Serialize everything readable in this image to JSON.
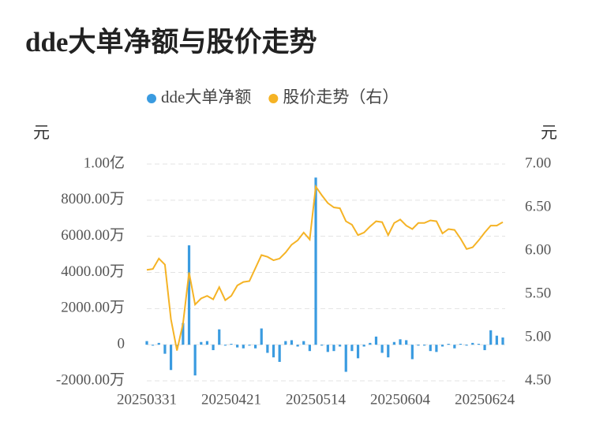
{
  "chart_data": {
    "type": "bar-line",
    "title": "dde大单净额与股价走势",
    "y_label": "元",
    "y2_label": "元",
    "categories": [
      "20250331",
      null,
      null,
      null,
      null,
      null,
      null,
      null,
      null,
      null,
      null,
      null,
      null,
      null,
      "20250421",
      null,
      null,
      null,
      null,
      null,
      null,
      null,
      null,
      null,
      null,
      null,
      null,
      null,
      "20250514",
      null,
      null,
      null,
      null,
      null,
      null,
      null,
      null,
      null,
      null,
      null,
      null,
      null,
      "20250604",
      null,
      null,
      null,
      null,
      null,
      null,
      null,
      null,
      null,
      null,
      null,
      null,
      null,
      "20250624",
      null,
      null,
      null
    ],
    "series": [
      {
        "name": "dde大单净额",
        "color": "#3a9be0",
        "type": "bar",
        "axis": "y",
        "values": [
          200,
          -50,
          100,
          -500,
          -1400,
          -200,
          1200,
          5500,
          -1700,
          150,
          200,
          -300,
          850,
          -50,
          50,
          -150,
          -200,
          -50,
          -200,
          900,
          -450,
          -700,
          -950,
          200,
          250,
          -100,
          200,
          -350,
          9250,
          -50,
          -400,
          -350,
          -100,
          -1500,
          -350,
          -750,
          -100,
          100,
          450,
          -450,
          -700,
          150,
          300,
          250,
          -800,
          -50,
          -50,
          -350,
          -400,
          -100,
          50,
          -200,
          50,
          -50,
          100,
          50,
          -300,
          800,
          500,
          400
        ]
      },
      {
        "name": "股价走势（右）",
        "color": "#f5b325",
        "type": "line",
        "axis": "y2",
        "values": [
          5.78,
          5.79,
          5.91,
          5.84,
          5.21,
          4.85,
          5.16,
          5.75,
          5.38,
          5.45,
          5.48,
          5.44,
          5.58,
          5.43,
          5.48,
          5.6,
          5.64,
          5.65,
          5.8,
          5.95,
          5.93,
          5.89,
          5.91,
          5.98,
          6.07,
          6.12,
          6.21,
          6.13,
          6.74,
          6.64,
          6.55,
          6.5,
          6.49,
          6.34,
          6.3,
          6.18,
          6.21,
          6.28,
          6.34,
          6.33,
          6.18,
          6.32,
          6.36,
          6.29,
          6.25,
          6.32,
          6.32,
          6.35,
          6.34,
          6.2,
          6.25,
          6.24,
          6.14,
          6.02,
          6.04,
          6.12,
          6.21,
          6.29,
          6.29,
          6.33
        ]
      }
    ],
    "ylim": [
      -2000,
      10000
    ],
    "yticks": [
      {
        "value": -2000,
        "label": "-2000.00万"
      },
      0,
      {
        "value": 2000,
        "label": "2000.00万"
      },
      {
        "value": 4000,
        "label": "4000.00万"
      },
      {
        "value": 6000,
        "label": "6000.00万"
      },
      {
        "value": 8000,
        "label": "8000.00万"
      },
      {
        "value": 10000,
        "label": "1.00亿"
      }
    ],
    "y2lim": [
      4.5,
      7.0
    ],
    "y2ticks": [
      {
        "value": 4.5,
        "label": "4.50"
      },
      {
        "value": 5,
        "label": "5.00"
      },
      {
        "value": 5.5,
        "label": "5.50"
      },
      {
        "value": 6,
        "label": "6.00"
      },
      {
        "value": 6.5,
        "label": "6.50"
      },
      {
        "value": 7,
        "label": "7.00"
      }
    ],
    "grid": true
  }
}
